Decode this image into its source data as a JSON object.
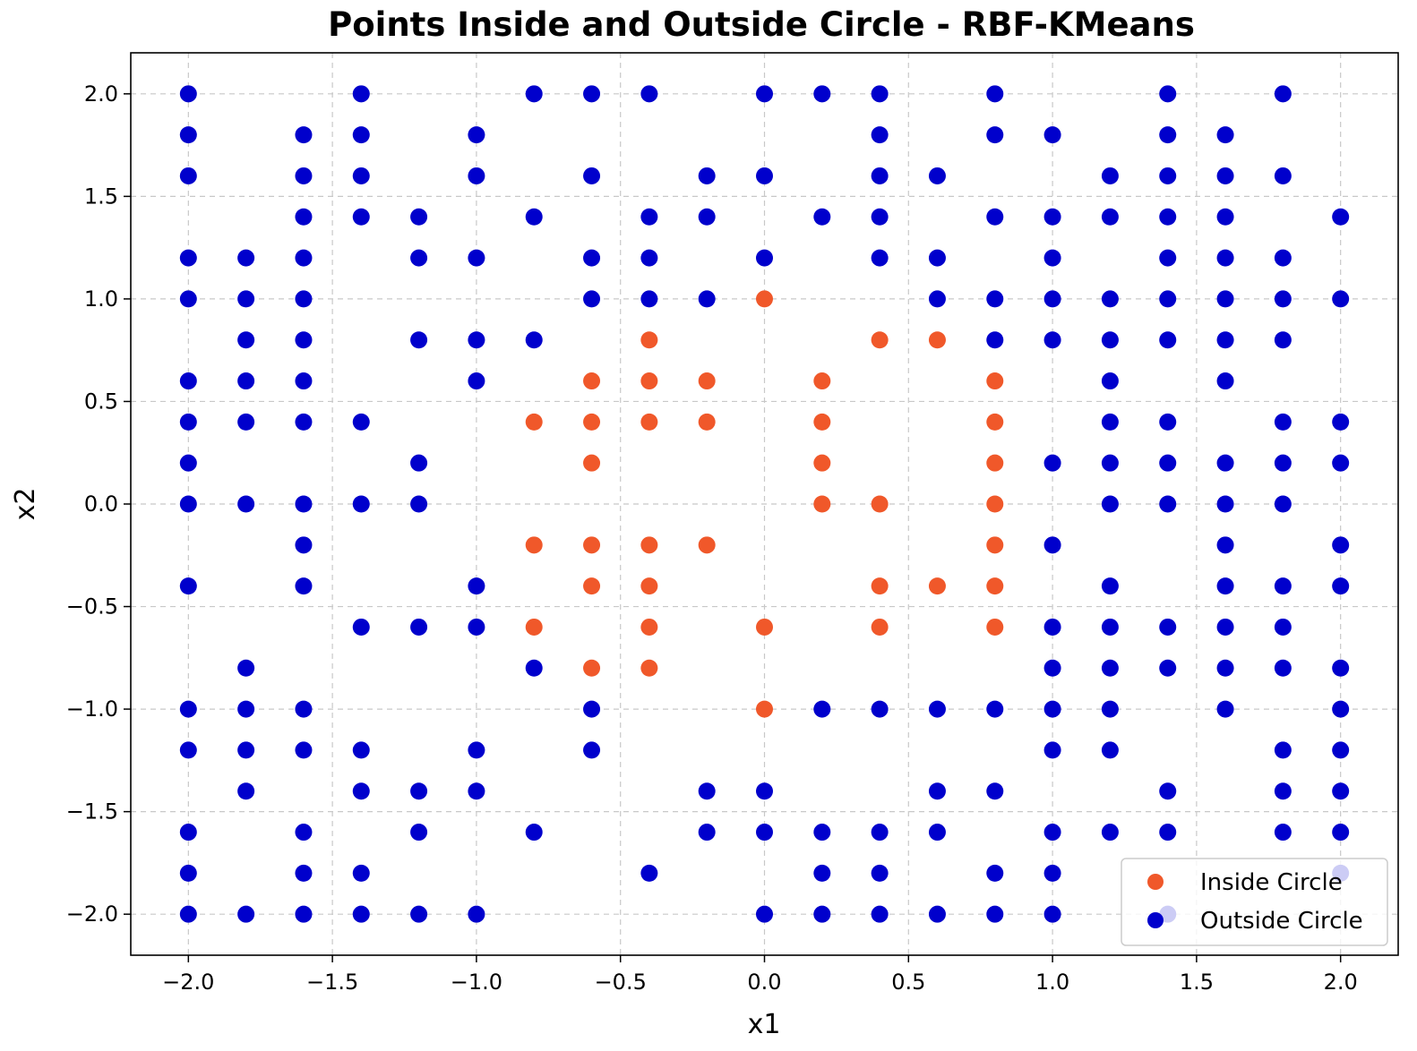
{
  "chart_data": {
    "type": "scatter",
    "title": "Points Inside and Outside Circle - RBF-KMeans",
    "xlabel": "x1",
    "ylabel": "x2",
    "xlim": [
      -2.2,
      2.2
    ],
    "ylim": [
      -2.2,
      2.2
    ],
    "xticks": [
      -2.0,
      -1.5,
      -1.0,
      -0.5,
      0.0,
      0.5,
      1.0,
      1.5,
      2.0
    ],
    "yticks": [
      -2.0,
      -1.5,
      -1.0,
      -0.5,
      0.0,
      0.5,
      1.0,
      1.5,
      2.0
    ],
    "xtick_labels": [
      "−2.0",
      "−1.5",
      "−1.0",
      "−0.5",
      "0.0",
      "0.5",
      "1.0",
      "1.5",
      "2.0"
    ],
    "ytick_labels": [
      "−2.0",
      "−1.5",
      "−1.0",
      "−0.5",
      "0.0",
      "0.5",
      "1.0",
      "1.5",
      "2.0"
    ],
    "grid": true,
    "legend_position": "lower-right",
    "series": [
      {
        "name": "Inside Circle",
        "color": "#f0582a",
        "points": [
          [
            0.0,
            1.0
          ],
          [
            -0.4,
            0.8
          ],
          [
            0.4,
            0.8
          ],
          [
            0.6,
            0.8
          ],
          [
            -0.6,
            0.6
          ],
          [
            -0.4,
            0.6
          ],
          [
            -0.2,
            0.6
          ],
          [
            0.2,
            0.6
          ],
          [
            0.8,
            0.6
          ],
          [
            -0.8,
            0.4
          ],
          [
            -0.6,
            0.4
          ],
          [
            -0.4,
            0.4
          ],
          [
            -0.2,
            0.4
          ],
          [
            0.2,
            0.4
          ],
          [
            0.8,
            0.4
          ],
          [
            -0.6,
            0.2
          ],
          [
            0.2,
            0.2
          ],
          [
            0.8,
            0.2
          ],
          [
            0.2,
            0.0
          ],
          [
            0.4,
            0.0
          ],
          [
            0.8,
            0.0
          ],
          [
            -0.8,
            -0.2
          ],
          [
            -0.6,
            -0.2
          ],
          [
            -0.4,
            -0.2
          ],
          [
            -0.2,
            -0.2
          ],
          [
            0.8,
            -0.2
          ],
          [
            -0.6,
            -0.4
          ],
          [
            -0.4,
            -0.4
          ],
          [
            0.4,
            -0.4
          ],
          [
            0.6,
            -0.4
          ],
          [
            0.8,
            -0.4
          ],
          [
            -0.8,
            -0.6
          ],
          [
            -0.4,
            -0.6
          ],
          [
            0.0,
            -0.6
          ],
          [
            0.4,
            -0.6
          ],
          [
            0.8,
            -0.6
          ],
          [
            -0.6,
            -0.8
          ],
          [
            -0.4,
            -0.8
          ],
          [
            0.0,
            -1.0
          ]
        ]
      },
      {
        "name": "Outside Circle",
        "color": "#0000cc",
        "points": [
          [
            -2.0,
            2.0
          ],
          [
            -1.4,
            2.0
          ],
          [
            -0.8,
            2.0
          ],
          [
            -0.6,
            2.0
          ],
          [
            -0.4,
            2.0
          ],
          [
            0.0,
            2.0
          ],
          [
            0.2,
            2.0
          ],
          [
            0.4,
            2.0
          ],
          [
            0.8,
            2.0
          ],
          [
            1.4,
            2.0
          ],
          [
            1.8,
            2.0
          ],
          [
            -2.0,
            1.8
          ],
          [
            -1.6,
            1.8
          ],
          [
            -1.4,
            1.8
          ],
          [
            -1.0,
            1.8
          ],
          [
            0.4,
            1.8
          ],
          [
            0.8,
            1.8
          ],
          [
            1.0,
            1.8
          ],
          [
            1.4,
            1.8
          ],
          [
            1.6,
            1.8
          ],
          [
            -2.0,
            1.6
          ],
          [
            -1.6,
            1.6
          ],
          [
            -1.4,
            1.6
          ],
          [
            -1.0,
            1.6
          ],
          [
            -0.6,
            1.6
          ],
          [
            -0.2,
            1.6
          ],
          [
            0.0,
            1.6
          ],
          [
            0.4,
            1.6
          ],
          [
            0.6,
            1.6
          ],
          [
            1.2,
            1.6
          ],
          [
            1.4,
            1.6
          ],
          [
            1.6,
            1.6
          ],
          [
            1.8,
            1.6
          ],
          [
            -1.6,
            1.4
          ],
          [
            -1.4,
            1.4
          ],
          [
            -1.2,
            1.4
          ],
          [
            -0.8,
            1.4
          ],
          [
            -0.4,
            1.4
          ],
          [
            -0.2,
            1.4
          ],
          [
            0.2,
            1.4
          ],
          [
            0.4,
            1.4
          ],
          [
            0.8,
            1.4
          ],
          [
            1.0,
            1.4
          ],
          [
            1.2,
            1.4
          ],
          [
            1.4,
            1.4
          ],
          [
            1.6,
            1.4
          ],
          [
            2.0,
            1.4
          ],
          [
            -2.0,
            1.2
          ],
          [
            -1.8,
            1.2
          ],
          [
            -1.6,
            1.2
          ],
          [
            -1.2,
            1.2
          ],
          [
            -1.0,
            1.2
          ],
          [
            -0.6,
            1.2
          ],
          [
            -0.4,
            1.2
          ],
          [
            0.0,
            1.2
          ],
          [
            0.4,
            1.2
          ],
          [
            0.6,
            1.2
          ],
          [
            1.0,
            1.2
          ],
          [
            1.4,
            1.2
          ],
          [
            1.6,
            1.2
          ],
          [
            1.8,
            1.2
          ],
          [
            -2.0,
            1.0
          ],
          [
            -1.8,
            1.0
          ],
          [
            -1.6,
            1.0
          ],
          [
            -0.6,
            1.0
          ],
          [
            -0.4,
            1.0
          ],
          [
            -0.2,
            1.0
          ],
          [
            0.6,
            1.0
          ],
          [
            0.8,
            1.0
          ],
          [
            1.0,
            1.0
          ],
          [
            1.2,
            1.0
          ],
          [
            1.4,
            1.0
          ],
          [
            1.6,
            1.0
          ],
          [
            1.8,
            1.0
          ],
          [
            2.0,
            1.0
          ],
          [
            -1.8,
            0.8
          ],
          [
            -1.6,
            0.8
          ],
          [
            -1.2,
            0.8
          ],
          [
            -1.0,
            0.8
          ],
          [
            -0.8,
            0.8
          ],
          [
            0.8,
            0.8
          ],
          [
            1.0,
            0.8
          ],
          [
            1.2,
            0.8
          ],
          [
            1.4,
            0.8
          ],
          [
            1.6,
            0.8
          ],
          [
            1.8,
            0.8
          ],
          [
            -2.0,
            0.6
          ],
          [
            -1.8,
            0.6
          ],
          [
            -1.6,
            0.6
          ],
          [
            -1.0,
            0.6
          ],
          [
            1.2,
            0.6
          ],
          [
            1.6,
            0.6
          ],
          [
            -2.0,
            0.4
          ],
          [
            -1.8,
            0.4
          ],
          [
            -1.6,
            0.4
          ],
          [
            -1.4,
            0.4
          ],
          [
            1.2,
            0.4
          ],
          [
            1.4,
            0.4
          ],
          [
            1.8,
            0.4
          ],
          [
            2.0,
            0.4
          ],
          [
            -2.0,
            0.2
          ],
          [
            -1.2,
            0.2
          ],
          [
            1.0,
            0.2
          ],
          [
            1.2,
            0.2
          ],
          [
            1.4,
            0.2
          ],
          [
            1.6,
            0.2
          ],
          [
            1.8,
            0.2
          ],
          [
            2.0,
            0.2
          ],
          [
            -2.0,
            0.0
          ],
          [
            -1.8,
            0.0
          ],
          [
            -1.6,
            0.0
          ],
          [
            -1.4,
            0.0
          ],
          [
            -1.2,
            0.0
          ],
          [
            1.2,
            0.0
          ],
          [
            1.4,
            0.0
          ],
          [
            1.6,
            0.0
          ],
          [
            1.8,
            0.0
          ],
          [
            -1.6,
            -0.2
          ],
          [
            1.0,
            -0.2
          ],
          [
            1.6,
            -0.2
          ],
          [
            2.0,
            -0.2
          ],
          [
            -2.0,
            -0.4
          ],
          [
            -1.6,
            -0.4
          ],
          [
            -1.0,
            -0.4
          ],
          [
            1.2,
            -0.4
          ],
          [
            1.6,
            -0.4
          ],
          [
            1.8,
            -0.4
          ],
          [
            2.0,
            -0.4
          ],
          [
            -1.4,
            -0.6
          ],
          [
            -1.2,
            -0.6
          ],
          [
            -1.0,
            -0.6
          ],
          [
            1.0,
            -0.6
          ],
          [
            1.2,
            -0.6
          ],
          [
            1.4,
            -0.6
          ],
          [
            1.6,
            -0.6
          ],
          [
            1.8,
            -0.6
          ],
          [
            -1.8,
            -0.8
          ],
          [
            -0.8,
            -0.8
          ],
          [
            1.0,
            -0.8
          ],
          [
            1.2,
            -0.8
          ],
          [
            1.4,
            -0.8
          ],
          [
            1.6,
            -0.8
          ],
          [
            1.8,
            -0.8
          ],
          [
            2.0,
            -0.8
          ],
          [
            -2.0,
            -1.0
          ],
          [
            -1.8,
            -1.0
          ],
          [
            -1.6,
            -1.0
          ],
          [
            -0.6,
            -1.0
          ],
          [
            0.2,
            -1.0
          ],
          [
            0.4,
            -1.0
          ],
          [
            0.6,
            -1.0
          ],
          [
            0.8,
            -1.0
          ],
          [
            1.0,
            -1.0
          ],
          [
            1.2,
            -1.0
          ],
          [
            1.6,
            -1.0
          ],
          [
            2.0,
            -1.0
          ],
          [
            -2.0,
            -1.2
          ],
          [
            -1.8,
            -1.2
          ],
          [
            -1.6,
            -1.2
          ],
          [
            -1.4,
            -1.2
          ],
          [
            -1.0,
            -1.2
          ],
          [
            -0.6,
            -1.2
          ],
          [
            1.0,
            -1.2
          ],
          [
            1.2,
            -1.2
          ],
          [
            1.8,
            -1.2
          ],
          [
            2.0,
            -1.2
          ],
          [
            -1.8,
            -1.4
          ],
          [
            -1.4,
            -1.4
          ],
          [
            -1.2,
            -1.4
          ],
          [
            -1.0,
            -1.4
          ],
          [
            -0.2,
            -1.4
          ],
          [
            0.0,
            -1.4
          ],
          [
            0.6,
            -1.4
          ],
          [
            0.8,
            -1.4
          ],
          [
            1.4,
            -1.4
          ],
          [
            1.8,
            -1.4
          ],
          [
            2.0,
            -1.4
          ],
          [
            -2.0,
            -1.6
          ],
          [
            -1.6,
            -1.6
          ],
          [
            -1.2,
            -1.6
          ],
          [
            -0.8,
            -1.6
          ],
          [
            -0.2,
            -1.6
          ],
          [
            0.0,
            -1.6
          ],
          [
            0.2,
            -1.6
          ],
          [
            0.4,
            -1.6
          ],
          [
            0.6,
            -1.6
          ],
          [
            1.0,
            -1.6
          ],
          [
            1.2,
            -1.6
          ],
          [
            1.4,
            -1.6
          ],
          [
            1.8,
            -1.6
          ],
          [
            2.0,
            -1.6
          ],
          [
            -2.0,
            -1.8
          ],
          [
            -1.6,
            -1.8
          ],
          [
            -1.4,
            -1.8
          ],
          [
            -0.4,
            -1.8
          ],
          [
            0.2,
            -1.8
          ],
          [
            0.4,
            -1.8
          ],
          [
            0.8,
            -1.8
          ],
          [
            1.0,
            -1.8
          ],
          [
            2.0,
            -1.8
          ],
          [
            -2.0,
            -2.0
          ],
          [
            -1.8,
            -2.0
          ],
          [
            -1.6,
            -2.0
          ],
          [
            -1.4,
            -2.0
          ],
          [
            -1.2,
            -2.0
          ],
          [
            -1.0,
            -2.0
          ],
          [
            0.0,
            -2.0
          ],
          [
            0.2,
            -2.0
          ],
          [
            0.4,
            -2.0
          ],
          [
            0.6,
            -2.0
          ],
          [
            0.8,
            -2.0
          ],
          [
            1.0,
            -2.0
          ],
          [
            1.4,
            -2.0
          ]
        ]
      }
    ]
  }
}
